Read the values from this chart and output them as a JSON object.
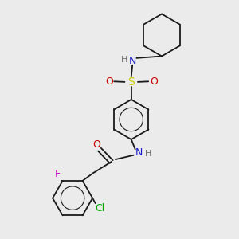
{
  "bg_color": "#ebebeb",
  "bond_color": "#1a1a1a",
  "colors": {
    "N": "#1a1acc",
    "O": "#cc0000",
    "S": "#cccc00",
    "F": "#cc00cc",
    "Cl": "#00aa00",
    "H": "#666666",
    "C": "#1a1a1a"
  },
  "figsize": [
    3.0,
    3.0
  ],
  "dpi": 100
}
